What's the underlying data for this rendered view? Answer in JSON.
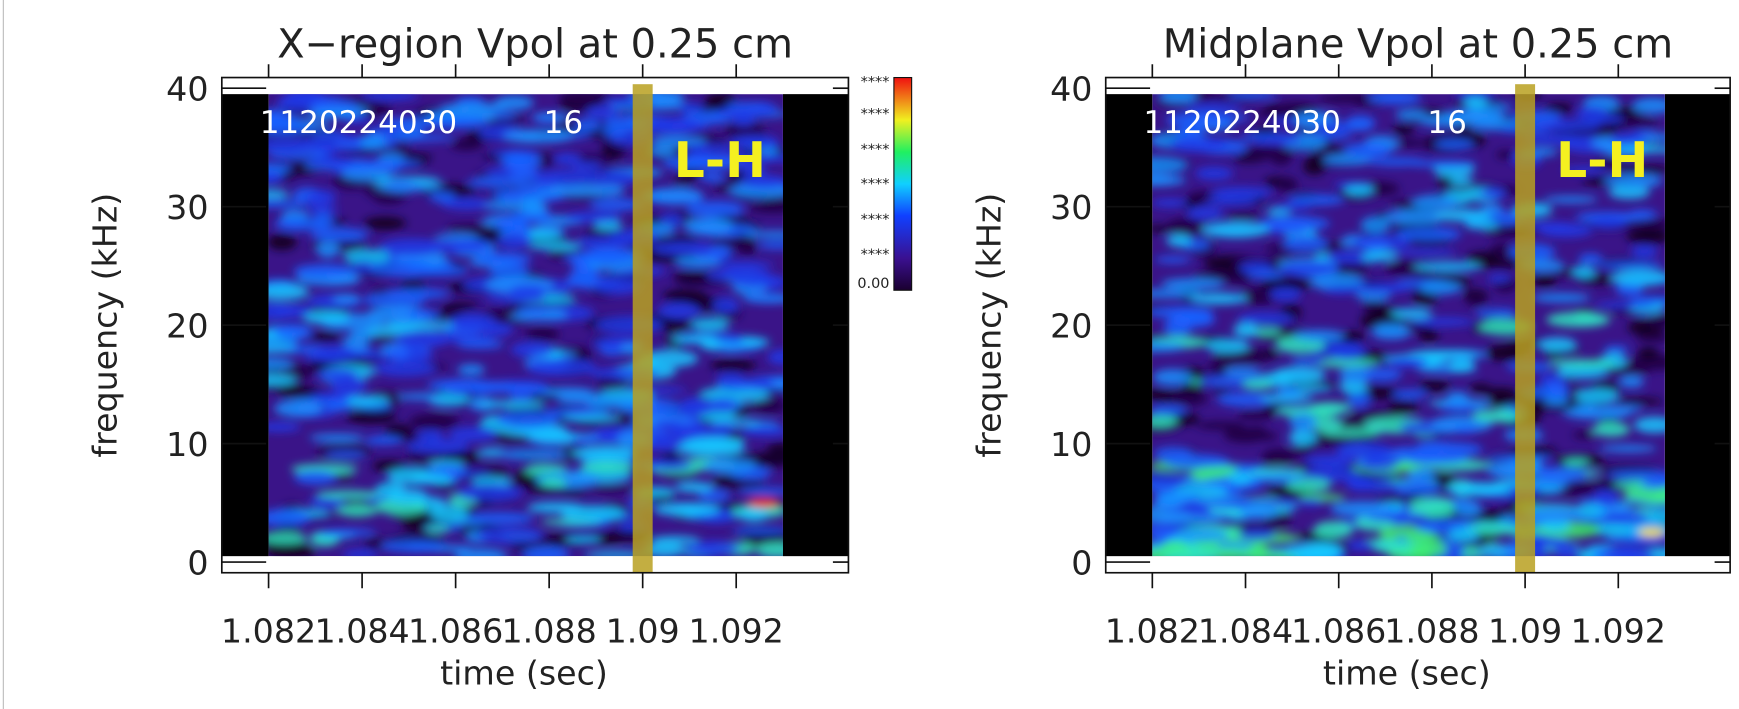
{
  "chart_data": [
    {
      "type": "heatmap",
      "title": "X−region Vpol at 0.25 cm",
      "xlabel": "time (sec)",
      "ylabel": "frequency (kHz)",
      "xlim": [
        1.081,
        1.0944
      ],
      "ylim": [
        -0.9,
        40.9
      ],
      "xticks": [
        1.082,
        1.084,
        1.086,
        1.088,
        1.09,
        1.092
      ],
      "yticks": [
        0,
        10,
        20,
        30,
        40
      ],
      "time_range": [
        1.082,
        1.093
      ],
      "frequency_range": [
        0.5,
        39.5
      ],
      "shot": "1120224030",
      "index": "16",
      "event": "L-H",
      "event_time": 1.09,
      "colorbar_labels": [
        "****",
        "****",
        "****",
        "****",
        "****",
        "****",
        "0.00"
      ]
    },
    {
      "type": "heatmap",
      "title": "Midplane Vpol at 0.25 cm",
      "xlabel": "time (sec)",
      "ylabel": "frequency (kHz)",
      "xlim": [
        1.081,
        1.0944
      ],
      "ylim": [
        -0.9,
        40.9
      ],
      "xticks": [
        1.082,
        1.084,
        1.086,
        1.088,
        1.09,
        1.092
      ],
      "yticks": [
        0,
        10,
        20,
        30,
        40
      ],
      "time_range": [
        1.082,
        1.093
      ],
      "frequency_range": [
        0.5,
        39.5
      ],
      "shot": "1120224030",
      "index": "16",
      "event": "L-H",
      "event_time": 1.09
    }
  ]
}
